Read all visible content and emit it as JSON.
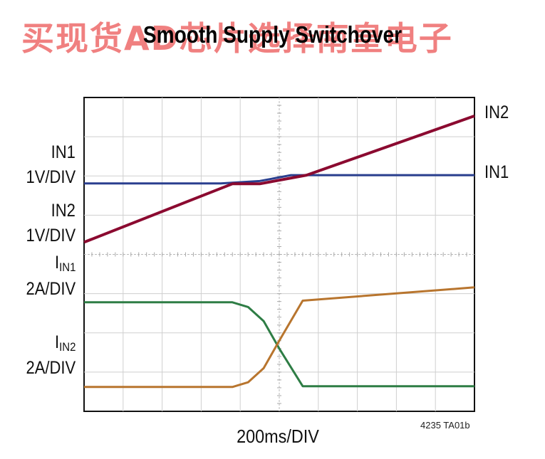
{
  "watermark": "买现货AD芯片选择南皇电子",
  "chart_data": {
    "type": "line",
    "title": "Smooth Supply Switchover",
    "xlabel": "200ms/DIV",
    "figure_code": "4235 TA01b",
    "xlim": [
      0,
      10
    ],
    "grid": true,
    "panels": [
      {
        "ylim": [
          0,
          4
        ],
        "left_labels": [
          {
            "name": "IN1",
            "scale": "1V/DIV"
          },
          {
            "name": "IN2",
            "scale": "1V/DIV"
          }
        ],
        "series": [
          {
            "name": "IN1",
            "color": "#2a3f8f",
            "x": [
              0,
              3.5,
              4.5,
              5.3,
              10
            ],
            "y": [
              1.81,
              1.81,
              1.87,
              2.02,
              2.02
            ]
          },
          {
            "name": "IN2",
            "color": "#8b0a30",
            "x": [
              0,
              3.8,
              4.5,
              5.7,
              10
            ],
            "y": [
              0.31,
              1.8,
              1.8,
              2.02,
              3.53
            ]
          }
        ]
      },
      {
        "ylim": [
          0,
          4
        ],
        "left_labels": [
          {
            "name": "I",
            "sub": "IN1",
            "scale": "2A/DIV"
          },
          {
            "name": "I",
            "sub": "IN2",
            "scale": "2A/DIV"
          }
        ],
        "series": [
          {
            "name": "IIN1",
            "color": "#2e7d45",
            "x": [
              0,
              3.8,
              4.2,
              4.6,
              5.0,
              5.6,
              10
            ],
            "y": [
              2.78,
              2.78,
              2.66,
              2.3,
              1.6,
              0.64,
              0.64
            ]
          },
          {
            "name": "IIN2",
            "color": "#b8752e",
            "x": [
              0,
              3.8,
              4.2,
              4.6,
              5.0,
              5.6,
              10
            ],
            "y": [
              0.62,
              0.62,
              0.74,
              1.1,
              1.8,
              2.82,
              3.16
            ]
          }
        ]
      }
    ],
    "right_labels": [
      "IN2",
      "IN1"
    ]
  }
}
